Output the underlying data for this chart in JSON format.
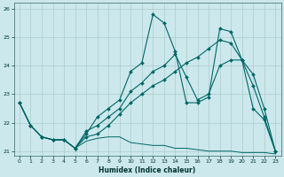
{
  "xlabel": "Humidex (Indice chaleur)",
  "background_color": "#cce8ec",
  "grid_color": "#aacccc",
  "line_color": "#006666",
  "xlim": [
    -0.5,
    23.5
  ],
  "ylim": [
    20.85,
    26.2
  ],
  "yticks": [
    21,
    22,
    23,
    24,
    25,
    26
  ],
  "xticks": [
    0,
    1,
    2,
    3,
    4,
    5,
    6,
    7,
    8,
    9,
    10,
    11,
    12,
    13,
    14,
    15,
    16,
    17,
    18,
    19,
    20,
    21,
    22,
    23
  ],
  "line1_x": [
    0,
    1,
    2,
    3,
    4,
    5,
    6,
    7,
    8,
    9,
    10,
    11,
    12,
    13,
    14,
    15,
    16,
    17,
    18,
    19,
    20,
    21,
    22,
    23
  ],
  "line1_y": [
    22.7,
    21.9,
    21.5,
    21.4,
    21.4,
    21.1,
    21.35,
    21.45,
    21.5,
    21.5,
    21.3,
    21.25,
    21.2,
    21.2,
    21.1,
    21.1,
    21.05,
    21.0,
    21.0,
    21.0,
    20.95,
    20.95,
    20.95,
    20.9
  ],
  "line2_x": [
    0,
    1,
    2,
    3,
    4,
    5,
    6,
    7,
    8,
    9,
    10,
    11,
    12,
    13,
    14,
    15,
    16,
    17,
    18,
    19,
    20,
    21,
    22,
    23
  ],
  "line2_y": [
    22.7,
    21.9,
    21.5,
    21.4,
    21.4,
    21.1,
    21.6,
    22.2,
    22.5,
    22.8,
    23.8,
    24.1,
    25.8,
    25.5,
    24.5,
    22.7,
    22.7,
    22.9,
    25.3,
    25.2,
    24.2,
    22.5,
    22.1,
    21.0
  ],
  "line3_x": [
    0,
    1,
    2,
    3,
    4,
    5,
    6,
    7,
    8,
    9,
    10,
    11,
    12,
    13,
    14,
    15,
    16,
    17,
    18,
    19,
    20,
    21,
    22,
    23
  ],
  "line3_y": [
    22.7,
    21.9,
    21.5,
    21.4,
    21.4,
    21.1,
    21.7,
    21.9,
    22.2,
    22.5,
    23.1,
    23.4,
    23.8,
    24.0,
    24.4,
    23.6,
    22.8,
    23.0,
    24.0,
    24.2,
    24.2,
    23.3,
    22.2,
    21.0
  ],
  "line4_x": [
    0,
    1,
    2,
    3,
    4,
    5,
    6,
    7,
    8,
    9,
    10,
    11,
    12,
    13,
    14,
    15,
    16,
    17,
    18,
    19,
    20,
    21,
    22,
    23
  ],
  "line4_y": [
    22.7,
    21.9,
    21.5,
    21.4,
    21.4,
    21.1,
    21.5,
    21.6,
    21.9,
    22.3,
    22.7,
    23.0,
    23.3,
    23.5,
    23.8,
    24.1,
    24.3,
    24.6,
    24.9,
    24.8,
    24.2,
    23.7,
    22.5,
    21.0
  ],
  "figsize": [
    3.2,
    2.0
  ],
  "dpi": 100
}
